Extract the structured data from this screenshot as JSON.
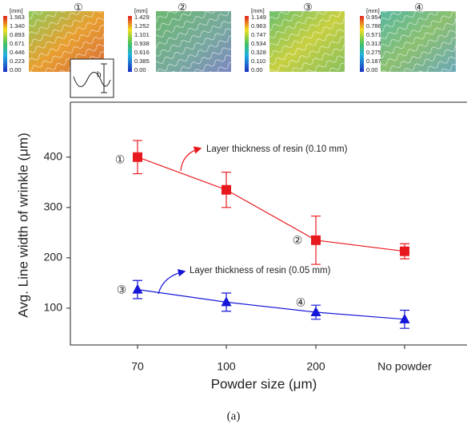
{
  "chart_data": {
    "type": "line",
    "x_label": "Powder size (μm)",
    "y_label": "Avg. Line width of wrinkle (μm)",
    "categories": [
      "70",
      "100",
      "200",
      "No powder"
    ],
    "series": [
      {
        "name": "Layer thickness of resin (0.10 mm)",
        "color": "#e8191e",
        "marker": "square",
        "values": [
          400,
          335,
          235,
          213
        ],
        "errors": [
          33,
          35,
          48,
          15
        ]
      },
      {
        "name": "Layer thickness of resin (0.05 mm)",
        "color": "#1616d8",
        "marker": "triangle",
        "values": [
          137,
          112,
          92,
          78
        ],
        "errors": [
          18,
          18,
          14,
          18
        ]
      }
    ],
    "ylim": [
      27,
      509
    ],
    "yticks": [
      100,
      200,
      300,
      400
    ],
    "point_labels": [
      "①",
      "②",
      "③",
      "④"
    ],
    "caption": "(a)"
  },
  "insets": [
    {
      "label": "①",
      "unit": "[mm]",
      "ticks": [
        1.563,
        {
          "value": 1.34,
          "label": "1.340"
        },
        0.893,
        0.671,
        0.446,
        0.223,
        {
          "value": 0,
          "label": "0.00"
        }
      ]
    },
    {
      "label": "②",
      "unit": "[mm]",
      "ticks": [
        1.429,
        1.252,
        1.101,
        0.938,
        0.616,
        0.385,
        {
          "value": 0,
          "label": "0.00"
        }
      ]
    },
    {
      "label": "③",
      "unit": "[mm]",
      "ticks": [
        1.149,
        0.963,
        0.747,
        0.534,
        0.328,
        {
          "value": 0.11,
          "label": "0.110"
        },
        {
          "value": 0,
          "label": "0.00"
        }
      ]
    },
    {
      "label": "④",
      "unit": "[mm]",
      "ticks": [
        0.954,
        0.786,
        0.571,
        0.313,
        0.275,
        0.187,
        {
          "value": 0,
          "label": "0.00"
        }
      ]
    }
  ]
}
